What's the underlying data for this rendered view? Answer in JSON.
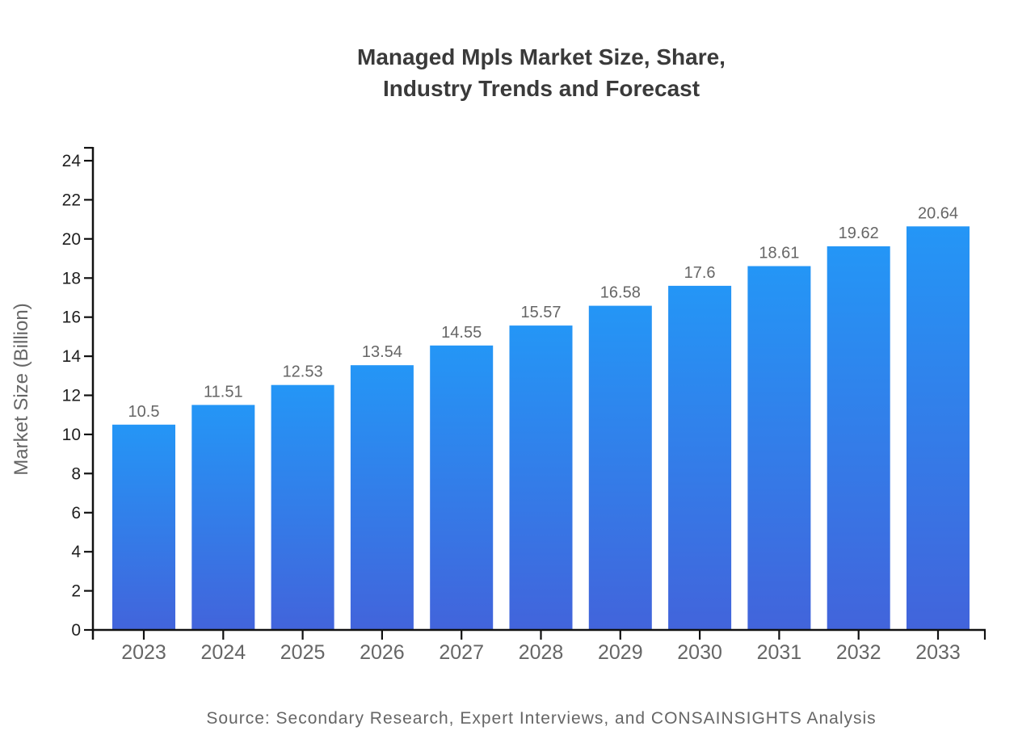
{
  "header": {
    "title_line1": "Managed Mpls Market Size, Share,",
    "title_line2": "Industry Trends and Forecast"
  },
  "footer": {
    "source_text": "Source: Secondary Research, Expert Interviews, and CONSAINSIGHTS Analysis"
  },
  "chart_data": {
    "type": "bar",
    "title": "Managed Mpls Market Size, Share, Industry Trends and Forecast",
    "categories": [
      "2023",
      "2024",
      "2025",
      "2026",
      "2027",
      "2028",
      "2029",
      "2030",
      "2031",
      "2032",
      "2033"
    ],
    "values": [
      10.5,
      11.51,
      12.53,
      13.54,
      14.55,
      15.57,
      16.58,
      17.6,
      18.61,
      19.62,
      20.64
    ],
    "value_labels": [
      "10.5",
      "11.51",
      "12.53",
      "13.54",
      "14.55",
      "15.57",
      "16.58",
      "17.6",
      "18.61",
      "19.62",
      "20.64"
    ],
    "xlabel": "",
    "ylabel": "Market Size (Billion)",
    "ylim": [
      0,
      24
    ],
    "ytick_step": 2,
    "grid": false,
    "legend": false,
    "bar_label_position": "above",
    "colors": {
      "bar_gradient_top": "#2496F6",
      "bar_gradient_bottom": "#4264DB",
      "axis": "#111111",
      "y_tick_label": "#1f1f1f",
      "x_tick_label": "#666666",
      "value_label": "#666666",
      "title": "#3a3a3a",
      "axis_label": "#666666",
      "source": "#666666"
    }
  }
}
